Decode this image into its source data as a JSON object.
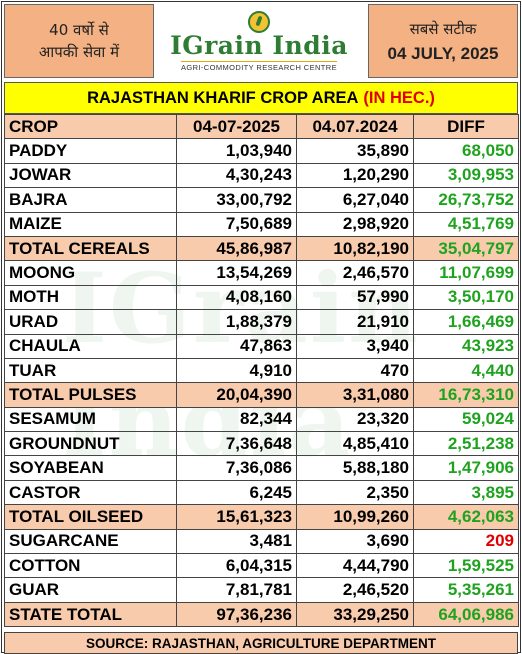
{
  "header": {
    "left_line1": "40 वर्षो से",
    "left_line2": "आपकी सेवा में",
    "right_line1": "सबसे सटीक",
    "date": "04 JULY, 2025",
    "logo_text": "IGrain India",
    "logo_subtitle": "AGRI-COMMODITY RESEARCH CENTRE",
    "watermark": "IGrain India"
  },
  "title": {
    "main": "RAJASTHAN KHARIF CROP AREA",
    "unit": "(IN HEC.)"
  },
  "table": {
    "columns": [
      "CROP",
      "04-07-2025",
      "04.07.2024",
      "DIFF"
    ],
    "rows": [
      {
        "crop": "PADDY",
        "y2025": "1,03,940",
        "y2024": "35,890",
        "diff": "68,050"
      },
      {
        "crop": "JOWAR",
        "y2025": "4,30,243",
        "y2024": "1,20,290",
        "diff": "3,09,953"
      },
      {
        "crop": "BAJRA",
        "y2025": "33,00,792",
        "y2024": "6,27,040",
        "diff": "26,73,752"
      },
      {
        "crop": "MAIZE",
        "y2025": "7,50,689",
        "y2024": "2,98,920",
        "diff": "4,51,769"
      },
      {
        "crop": "TOTAL CEREALS",
        "y2025": "45,86,987",
        "y2024": "10,82,190",
        "diff": "35,04,797",
        "total": true
      },
      {
        "crop": "MOONG",
        "y2025": "13,54,269",
        "y2024": "2,46,570",
        "diff": "11,07,699"
      },
      {
        "crop": "MOTH",
        "y2025": "4,08,160",
        "y2024": "57,990",
        "diff": "3,50,170"
      },
      {
        "crop": "URAD",
        "y2025": "1,88,379",
        "y2024": "21,910",
        "diff": "1,66,469"
      },
      {
        "crop": "CHAULA",
        "y2025": "47,863",
        "y2024": "3,940",
        "diff": "43,923"
      },
      {
        "crop": "TUAR",
        "y2025": "4,910",
        "y2024": "470",
        "diff": "4,440"
      },
      {
        "crop": "TOTAL PULSES",
        "y2025": "20,04,390",
        "y2024": "3,31,080",
        "diff": "16,73,310",
        "total": true
      },
      {
        "crop": "SESAMUM",
        "y2025": "82,344",
        "y2024": "23,320",
        "diff": "59,024"
      },
      {
        "crop": "GROUNDNUT",
        "y2025": "7,36,648",
        "y2024": "4,85,410",
        "diff": "2,51,238"
      },
      {
        "crop": "SOYABEAN",
        "y2025": "7,36,086",
        "y2024": "5,88,180",
        "diff": "1,47,906"
      },
      {
        "crop": "CASTOR",
        "y2025": "6,245",
        "y2024": "2,350",
        "diff": "3,895"
      },
      {
        "crop": "TOTAL OILSEED",
        "y2025": "15,61,323",
        "y2024": "10,99,260",
        "diff": "4,62,063",
        "total": true
      },
      {
        "crop": "SUGARCANE",
        "y2025": "3,481",
        "y2024": "3,690",
        "diff": "209",
        "negative": true
      },
      {
        "crop": "COTTON",
        "y2025": "6,04,315",
        "y2024": "4,44,790",
        "diff": "1,59,525"
      },
      {
        "crop": "GUAR",
        "y2025": "7,81,781",
        "y2024": "2,46,520",
        "diff": "5,35,261"
      },
      {
        "crop": "STATE TOTAL",
        "y2025": "97,36,236",
        "y2024": "33,29,250",
        "diff": "64,06,986",
        "total": true
      }
    ]
  },
  "source": "SOURCE: RAJASTHAN, AGRICULTURE DEPARTMENT",
  "colors": {
    "header_peach": "#f4b183",
    "total_row": "#f8cbad",
    "title_bg": "#ffff00",
    "diff_green": "#1fa31f",
    "diff_red": "#e00000",
    "brand_green": "#2e7d32"
  }
}
